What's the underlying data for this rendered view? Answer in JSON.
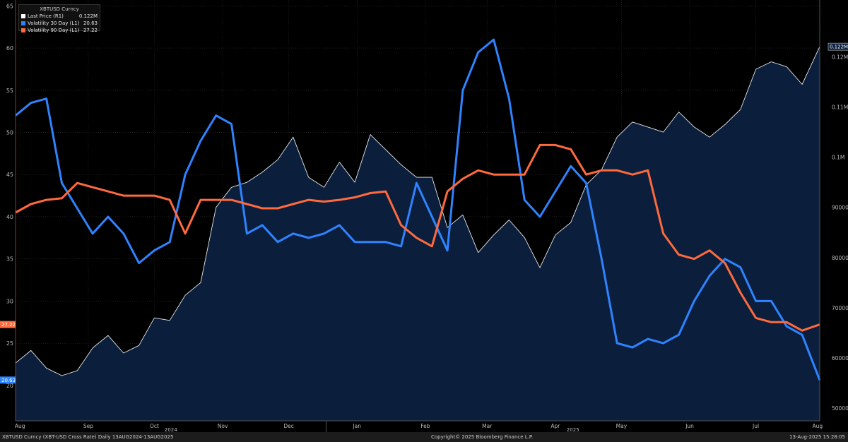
{
  "chart_data": {
    "type": "line",
    "title": "XBTUSD Curncy",
    "x_ticks": [
      "Aug",
      "Sep",
      "Oct",
      "Nov",
      "Dec",
      "Jan",
      "Feb",
      "Mar",
      "Apr",
      "May",
      "Jun",
      "Jul",
      "Aug"
    ],
    "year_labels": [
      "2024",
      "2025"
    ],
    "x_range": [
      "2024-08-13",
      "2025-08-13"
    ],
    "left_axis": {
      "min": 15.8,
      "max": 65.7,
      "ticks": [
        20,
        25,
        30,
        35,
        40,
        45,
        50,
        55,
        60,
        65
      ]
    },
    "right_axis": {
      "min": 47500,
      "max": 131300,
      "ticks": [
        50000,
        60000,
        70000,
        80000,
        90000
      ],
      "tick_labels": [
        {
          "value": 100000,
          "label": "0.1M"
        },
        {
          "value": 110000,
          "label": "0.11M"
        },
        {
          "value": 120000,
          "label": "0.12M"
        }
      ]
    },
    "series": [
      {
        "name": "Last Price (R1)",
        "axis": "right",
        "last_label": "0.122M",
        "color": "#e8e8e8",
        "fill": "#0b1f3d",
        "x": [
          "2024-08-13",
          "2024-08-20",
          "2024-08-27",
          "2024-09-03",
          "2024-09-10",
          "2024-09-17",
          "2024-09-24",
          "2024-10-01",
          "2024-10-08",
          "2024-10-15",
          "2024-10-22",
          "2024-10-29",
          "2024-11-05",
          "2024-11-12",
          "2024-11-19",
          "2024-11-26",
          "2024-12-03",
          "2024-12-10",
          "2024-12-17",
          "2024-12-24",
          "2024-12-31",
          "2025-01-07",
          "2025-01-14",
          "2025-01-21",
          "2025-01-28",
          "2025-02-04",
          "2025-02-11",
          "2025-02-18",
          "2025-02-25",
          "2025-03-04",
          "2025-03-11",
          "2025-03-18",
          "2025-03-25",
          "2025-04-01",
          "2025-04-08",
          "2025-04-15",
          "2025-04-22",
          "2025-04-29",
          "2025-05-06",
          "2025-05-13",
          "2025-05-20",
          "2025-05-27",
          "2025-06-03",
          "2025-06-10",
          "2025-06-17",
          "2025-06-24",
          "2025-07-01",
          "2025-07-08",
          "2025-07-15",
          "2025-07-22",
          "2025-07-29",
          "2025-08-05",
          "2025-08-13"
        ],
        "values": [
          59000,
          61500,
          58000,
          56500,
          57500,
          62000,
          64500,
          61000,
          62500,
          68000,
          67500,
          72500,
          75000,
          90000,
          94000,
          95000,
          97000,
          99500,
          104000,
          96000,
          94000,
          99000,
          95000,
          104500,
          101500,
          98500,
          96000,
          96000,
          86000,
          88500,
          81000,
          84500,
          87500,
          84000,
          78000,
          84500,
          87000,
          94500,
          97500,
          104000,
          107000,
          106000,
          105000,
          109000,
          106000,
          104000,
          106500,
          109500,
          117500,
          119000,
          118000,
          114500,
          122000
        ]
      },
      {
        "name": "Volatility 30 Day (L1)",
        "axis": "left",
        "last_label": "20.63",
        "color": "#2f83ff",
        "x": [
          "2024-08-13",
          "2024-08-20",
          "2024-08-27",
          "2024-09-03",
          "2024-09-10",
          "2024-09-17",
          "2024-09-24",
          "2024-10-01",
          "2024-10-08",
          "2024-10-15",
          "2024-10-22",
          "2024-10-29",
          "2024-11-05",
          "2024-11-12",
          "2024-11-19",
          "2024-11-26",
          "2024-12-03",
          "2024-12-10",
          "2024-12-17",
          "2024-12-24",
          "2024-12-31",
          "2025-01-07",
          "2025-01-14",
          "2025-01-21",
          "2025-01-28",
          "2025-02-04",
          "2025-02-11",
          "2025-02-18",
          "2025-02-25",
          "2025-03-04",
          "2025-03-11",
          "2025-03-18",
          "2025-03-25",
          "2025-04-01",
          "2025-04-08",
          "2025-04-15",
          "2025-04-22",
          "2025-04-29",
          "2025-05-06",
          "2025-05-13",
          "2025-05-20",
          "2025-05-27",
          "2025-06-03",
          "2025-06-10",
          "2025-06-17",
          "2025-06-24",
          "2025-07-01",
          "2025-07-08",
          "2025-07-15",
          "2025-07-22",
          "2025-07-29",
          "2025-08-05",
          "2025-08-13"
        ],
        "values": [
          52,
          53.5,
          54,
          44,
          41,
          38,
          40,
          38,
          34.5,
          36,
          37,
          45,
          49,
          52,
          51,
          38,
          39,
          37,
          38,
          37.5,
          38,
          39,
          37,
          37,
          37,
          36.5,
          44,
          40,
          36,
          55,
          59.5,
          61,
          54,
          42,
          40,
          43,
          46,
          44,
          35,
          25,
          24.5,
          25.5,
          25,
          26,
          30,
          33,
          35,
          34,
          30,
          30,
          27,
          26,
          20.63
        ]
      },
      {
        "name": "Volatility 90 Day (L1)",
        "axis": "left",
        "last_label": "27.22",
        "color": "#ff6a3d",
        "x": [
          "2024-08-13",
          "2024-08-20",
          "2024-08-27",
          "2024-09-03",
          "2024-09-10",
          "2024-09-17",
          "2024-09-24",
          "2024-10-01",
          "2024-10-08",
          "2024-10-15",
          "2024-10-22",
          "2024-10-29",
          "2024-11-05",
          "2024-11-12",
          "2024-11-19",
          "2024-11-26",
          "2024-12-03",
          "2024-12-10",
          "2024-12-17",
          "2024-12-24",
          "2024-12-31",
          "2025-01-07",
          "2025-01-14",
          "2025-01-21",
          "2025-01-28",
          "2025-02-04",
          "2025-02-11",
          "2025-02-18",
          "2025-02-25",
          "2025-03-04",
          "2025-03-11",
          "2025-03-18",
          "2025-03-25",
          "2025-04-01",
          "2025-04-08",
          "2025-04-15",
          "2025-04-22",
          "2025-04-29",
          "2025-05-06",
          "2025-05-13",
          "2025-05-20",
          "2025-05-27",
          "2025-06-03",
          "2025-06-10",
          "2025-06-17",
          "2025-06-24",
          "2025-07-01",
          "2025-07-08",
          "2025-07-15",
          "2025-07-22",
          "2025-07-29",
          "2025-08-05",
          "2025-08-13"
        ],
        "values": [
          40.5,
          41.5,
          42,
          42.2,
          44,
          43.5,
          43,
          42.5,
          42.5,
          42.5,
          42,
          38,
          42,
          42,
          42,
          41.5,
          41,
          41,
          41.5,
          42,
          41.8,
          42,
          42.3,
          42.8,
          43,
          39,
          37.5,
          36.5,
          43,
          44.5,
          45.5,
          45,
          45,
          45,
          48.5,
          48.5,
          48,
          45,
          45.5,
          45.5,
          45,
          45.5,
          38,
          35.5,
          35,
          36,
          34.5,
          31,
          28,
          27.5,
          27.5,
          26.5,
          27.22
        ]
      }
    ]
  },
  "legend": {
    "title": "XBTUSD Curncy",
    "items": [
      {
        "label": "Last Price  (R1)",
        "value": "0.122M",
        "color": "#ffffff"
      },
      {
        "label": "Volatility 30 Day  (L1)",
        "value": "20.63",
        "color": "#2f83ff"
      },
      {
        "label": "Volatility 90 Day  (L1)",
        "value": "27.22",
        "color": "#ff6a3d"
      }
    ]
  },
  "footer": {
    "left": "XBTUSD Curncy (XBT-USD Cross Rate)  Daily 13AUG2024-13AUG2025",
    "center": "Copyright© 2025 Bloomberg Finance L.P.",
    "right": "13-Aug-2025 15:28:05"
  }
}
